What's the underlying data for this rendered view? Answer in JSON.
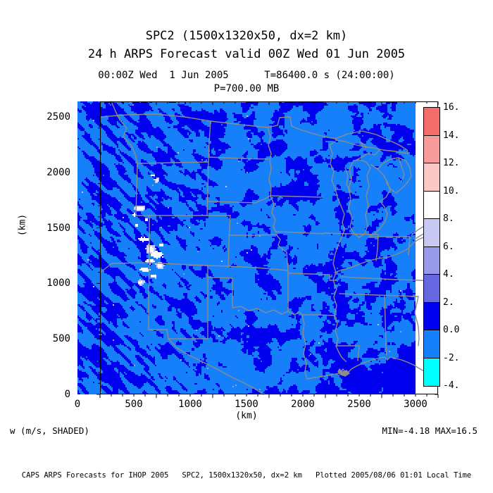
{
  "header": {
    "title": "SPC2 (1500x1320x50, dx=2 km)",
    "subtitle": "24 h ARPS Forecast valid 00Z Wed 01 Jun 2005",
    "valid_line": "00:00Z Wed  1 Jun 2005      T=86400.0 s (24:00:00)",
    "level_line": "P=700.00 MB"
  },
  "footer": {
    "caption_left": "w (m/s, SHADED)",
    "caption_right": "MIN=-4.18 MAX=16.5",
    "credit": "CAPS ARPS Forecasts for IHOP 2005   SPC2, 1500x1320x50, dx=2 km   Plotted 2005/08/06 01:01 Local Time"
  },
  "chart_data": {
    "type": "heatmap",
    "title": "SPC2 (1500x1320x50, dx=2 km)",
    "subtitle": "24 h ARPS Forecast valid 00Z Wed 01 Jun 2005",
    "field_name": "w",
    "units": "m/s",
    "xlabel": "(km)",
    "ylabel": "(km)",
    "xlim": [
      0,
      3000
    ],
    "ylim": [
      0,
      2640
    ],
    "x_ticks": [
      0,
      500,
      1000,
      1500,
      2000,
      2500,
      3000
    ],
    "y_ticks": [
      0,
      500,
      1000,
      1500,
      2000,
      2500
    ],
    "minor_tick_interval_km": 100,
    "stat_min": -4.18,
    "stat_max": 16.5,
    "grid": false,
    "legend_position": "right",
    "colorbar": {
      "levels": [
        -4,
        -2,
        0,
        2,
        4,
        6,
        8,
        10,
        12,
        14,
        16
      ],
      "tick_labels_top_to_bottom": [
        "16.",
        "14.",
        "12.",
        "10.",
        "8.",
        "6.",
        "4.",
        "2.",
        "0.0",
        "-2.",
        "-4."
      ],
      "colors_top_to_bottom": [
        "#F46D6D",
        "#F89B9B",
        "#FBC8C8",
        "#FFFFFF",
        "#C8C8F2",
        "#9999EA",
        "#6666E0",
        "#0000EE",
        "#1680FA",
        "#00FFFF"
      ]
    },
    "field_colors": {
      "downdraft_weak": "#1680FA",
      "updraft_weak": "#0000EE",
      "updraft_strong": "#FFFFFF",
      "speckle_mid": "#9999EA",
      "speckle_light": "#C8C8F2"
    },
    "map_region": "Central United States with state borders and Great Lakes",
    "border_color": "#8C8C8C"
  }
}
